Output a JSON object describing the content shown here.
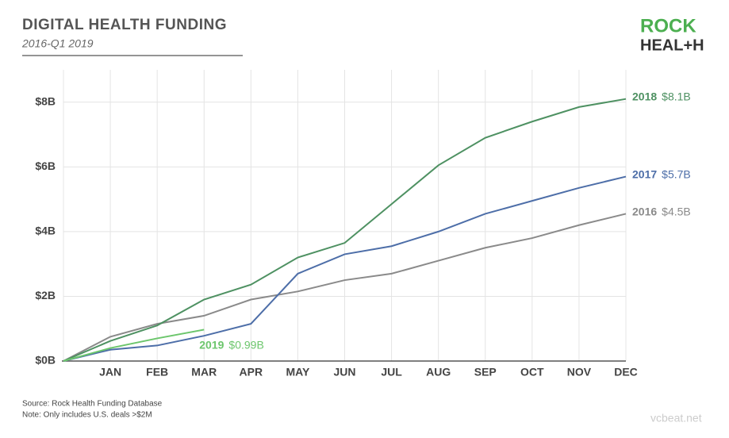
{
  "chart_data": {
    "type": "line",
    "title": "DIGITAL HEALTH FUNDING",
    "subtitle": "2016-Q1 2019",
    "logo": [
      "ROCK",
      "HEAL+H"
    ],
    "source": [
      "Source: Rock Health Funding Database",
      "Note: Only includes U.S. deals >$2M"
    ],
    "watermark": "vcbeat.net",
    "categories": [
      null,
      "JAN",
      "FEB",
      "MAR",
      "APR",
      "MAY",
      "JUN",
      "JUL",
      "AUG",
      "SEP",
      "OCT",
      "NOV",
      "DEC"
    ],
    "ylim": [
      0,
      9
    ],
    "yticks": [
      {
        "value": 0,
        "label": "$0B"
      },
      {
        "value": 2,
        "label": "$2B"
      },
      {
        "value": 4,
        "label": "$4B"
      },
      {
        "value": 6,
        "label": "$6B"
      },
      {
        "value": 8,
        "label": "$8B"
      }
    ],
    "grid": true,
    "series": [
      {
        "name": "2016",
        "label": "$4.5B",
        "color": "#8a8a8a",
        "values": [
          0,
          0.75,
          1.15,
          1.4,
          1.9,
          2.15,
          2.5,
          2.7,
          3.1,
          3.5,
          3.8,
          4.2,
          4.55
        ]
      },
      {
        "name": "2017",
        "label": "$5.7B",
        "color": "#4d6ea8",
        "values": [
          0,
          0.35,
          0.48,
          0.78,
          1.15,
          2.7,
          3.3,
          3.55,
          4.0,
          4.55,
          4.95,
          5.35,
          5.7
        ]
      },
      {
        "name": "2018",
        "label": "$8.1B",
        "color": "#4e9162",
        "values": [
          0,
          0.62,
          1.1,
          1.9,
          2.36,
          3.2,
          3.65,
          4.85,
          6.05,
          6.9,
          7.4,
          7.85,
          8.1
        ]
      },
      {
        "name": "2019",
        "label": "$0.99B",
        "color": "#6cc66c",
        "values": [
          0,
          0.4,
          0.7,
          0.97,
          null,
          null,
          null,
          null,
          null,
          null,
          null,
          null,
          null
        ]
      }
    ]
  }
}
